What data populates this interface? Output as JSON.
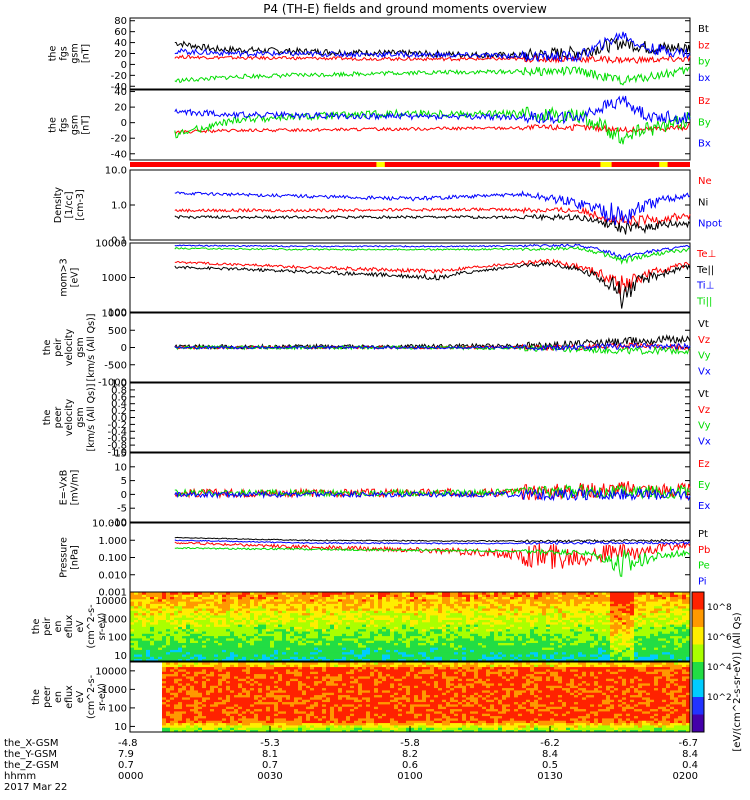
{
  "chart_data": {
    "type": "line",
    "title": "P4 (TH-E) fields and ground moments overview",
    "x": {
      "start": "0000",
      "end": "0200",
      "tick_labels": [
        "0000",
        "0030",
        "0100",
        "0130",
        "0200"
      ],
      "ephemeris": {
        "row_labels": [
          "the_X-GSM",
          "the_Y-GSM",
          "the_Z-GSM",
          "hhmm",
          "2017 Mar 22"
        ],
        "columns": [
          {
            "x": "-4.8",
            "y": "7.9",
            "z": "0.7",
            "t": "0000"
          },
          {
            "x": "-5.3",
            "y": "8.1",
            "z": "0.7",
            "t": "0030"
          },
          {
            "x": "-5.8",
            "y": "8.2",
            "z": "0.6",
            "t": "0100"
          },
          {
            "x": "-6.2",
            "y": "8.4",
            "z": "0.5",
            "t": "0130"
          },
          {
            "x": "-6.7",
            "y": "8.4",
            "z": "0.4",
            "t": "0200"
          }
        ]
      }
    },
    "panels": [
      {
        "id": "fgs_gsm_top",
        "ylabel": "the\nfgs\ngsm\n[nT]",
        "ylim": [
          -45,
          85
        ],
        "scale": "linear",
        "ticks": [
          "80",
          "60",
          "40",
          "20",
          "0",
          "-20",
          "-40"
        ],
        "tick_values": [
          80,
          60,
          40,
          20,
          0,
          -20,
          -40
        ],
        "series": [
          {
            "name": "Bt",
            "color": "#000000",
            "t": [
              0.08,
              0.15,
              0.3,
              0.5,
              0.7,
              0.8,
              0.88,
              0.93,
              1.0
            ],
            "y": [
              40,
              28,
              24,
              20,
              16,
              22,
              40,
              30,
              30
            ],
            "noise": 6
          },
          {
            "name": "bz",
            "color": "#ff0000",
            "t": [
              0.08,
              0.2,
              0.5,
              0.8,
              0.9,
              1.0
            ],
            "y": [
              14,
              12,
              10,
              10,
              8,
              10
            ],
            "noise": 3
          },
          {
            "name": "by",
            "color": "#00dd00",
            "t": [
              0.08,
              0.2,
              0.5,
              0.8,
              0.88,
              1.0
            ],
            "y": [
              -30,
              -22,
              -15,
              -12,
              -30,
              -10
            ],
            "noise": 4
          },
          {
            "name": "bx",
            "color": "#0000ff",
            "t": [
              0.08,
              0.2,
              0.5,
              0.8,
              0.88,
              0.92,
              1.0
            ],
            "y": [
              24,
              20,
              18,
              14,
              55,
              30,
              20
            ],
            "noise": 5
          }
        ]
      },
      {
        "id": "fgs_gsm_bot",
        "ylabel": "the\nfgs\ngsm\n[nT]",
        "ylim": [
          -48,
          42
        ],
        "scale": "linear",
        "ticks": [
          "40",
          "20",
          "0",
          "-20",
          "-40"
        ],
        "tick_values": [
          40,
          20,
          0,
          -20,
          -40
        ],
        "series": [
          {
            "name": "Bz",
            "color": "#ff0000",
            "t": [
              0.08,
              0.2,
              0.5,
              0.8,
              0.9,
              1.0
            ],
            "y": [
              -12,
              -10,
              -8,
              -6,
              -10,
              -5
            ],
            "noise": 2
          },
          {
            "name": "By",
            "color": "#00dd00",
            "t": [
              0.08,
              0.2,
              0.5,
              0.8,
              0.88,
              1.0
            ],
            "y": [
              -15,
              5,
              12,
              10,
              -18,
              5
            ],
            "noise": 5
          },
          {
            "name": "Bx",
            "color": "#0000ff",
            "t": [
              0.08,
              0.2,
              0.5,
              0.8,
              0.88,
              0.92,
              1.0
            ],
            "y": [
              14,
              10,
              8,
              6,
              30,
              10,
              5
            ],
            "noise": 4
          }
        ]
      },
      {
        "id": "density",
        "ylabel": "Density\n[1/cc]\n[cm-3]",
        "ylim": [
          0.1,
          10
        ],
        "scale": "log",
        "ticks": [
          "10.0",
          "1.0",
          "0.1"
        ],
        "tick_values": [
          10,
          1,
          0.1
        ],
        "series": [
          {
            "name": "Ne",
            "color": "#ff0000",
            "t": [
              0.08,
              0.3,
              0.6,
              0.8,
              0.88,
              1.0
            ],
            "y": [
              0.7,
              0.7,
              0.75,
              0.7,
              0.3,
              0.5
            ],
            "noise": 0.1
          },
          {
            "name": "Ni",
            "color": "#000000",
            "t": [
              0.08,
              0.3,
              0.6,
              0.8,
              0.88,
              1.0
            ],
            "y": [
              0.45,
              0.45,
              0.45,
              0.45,
              0.2,
              0.3
            ],
            "noise": 0.06
          },
          {
            "name": "Npot",
            "color": "#0000ff",
            "t": [
              0.08,
              0.3,
              0.5,
              0.7,
              0.88,
              1.0
            ],
            "y": [
              2.2,
              1.8,
              1.5,
              2.0,
              0.4,
              2.0
            ],
            "noise": 0.3
          }
        ]
      },
      {
        "id": "mom_gt3",
        "ylabel": "mom>3\n[eV]",
        "ylim": [
          100,
          10000
        ],
        "scale": "log",
        "ticks": [
          "10000",
          "1000",
          "100"
        ],
        "tick_values": [
          10000,
          1000,
          100
        ],
        "series": [
          {
            "name": "Te⊥",
            "color": "#ff0000",
            "t": [
              0.08,
              0.3,
              0.55,
              0.75,
              0.88,
              1.0
            ],
            "y": [
              2800,
              2000,
              1500,
              3000,
              500,
              2500
            ],
            "noise": 300
          },
          {
            "name": "Te||",
            "color": "#000000",
            "t": [
              0.08,
              0.3,
              0.55,
              0.75,
              0.88,
              1.0
            ],
            "y": [
              2000,
              1500,
              1000,
              2500,
              300,
              2000
            ],
            "noise": 250
          },
          {
            "name": "Ti⊥",
            "color": "#0000ff",
            "t": [
              0.08,
              0.3,
              0.6,
              0.8,
              0.88,
              1.0
            ],
            "y": [
              8500,
              8000,
              8000,
              8500,
              4000,
              8000
            ],
            "noise": 500
          },
          {
            "name": "Ti||",
            "color": "#00dd00",
            "t": [
              0.08,
              0.3,
              0.6,
              0.8,
              0.88,
              1.0
            ],
            "y": [
              7000,
              6500,
              6500,
              7000,
              3000,
              6500
            ],
            "noise": 500
          }
        ]
      },
      {
        "id": "peir_velocity",
        "ylabel": "the\npeir\nvelocity\ngsm\n[km/s (All Qs)]",
        "ylim": [
          -1000,
          1000
        ],
        "scale": "linear",
        "ticks": [
          "1000",
          "500",
          "0",
          "-500",
          "-1000"
        ],
        "tick_values": [
          1000,
          500,
          0,
          -500,
          -1000
        ],
        "series": [
          {
            "name": "Vt",
            "color": "#000000",
            "t": [
              0.08,
              0.5,
              0.75,
              0.9,
              1.0
            ],
            "y": [
              20,
              30,
              60,
              200,
              250
            ],
            "noise": 60
          },
          {
            "name": "Vz",
            "color": "#ff0000",
            "t": [
              0.08,
              0.5,
              0.75,
              0.9,
              1.0
            ],
            "y": [
              0,
              0,
              0,
              50,
              0
            ],
            "noise": 40
          },
          {
            "name": "Vy",
            "color": "#00dd00",
            "t": [
              0.08,
              0.5,
              0.75,
              0.9,
              1.0
            ],
            "y": [
              0,
              0,
              -20,
              -100,
              -80
            ],
            "noise": 50
          },
          {
            "name": "Vx",
            "color": "#0000ff",
            "t": [
              0.08,
              0.5,
              0.75,
              0.9,
              1.0
            ],
            "y": [
              0,
              0,
              0,
              40,
              30
            ],
            "noise": 40
          }
        ]
      },
      {
        "id": "peer_velocity",
        "ylabel": "the\npeer\nvelocity\ngsm\n[km/s (All Qs)]",
        "ylim": [
          -1,
          1
        ],
        "scale": "linear",
        "ticks": [
          "1.0",
          "0.8",
          "0.6",
          "0.4",
          "0.2",
          "0.0",
          "-0.2",
          "-0.4",
          "-0.6",
          "-0.8",
          "-1.0"
        ],
        "tick_values": [
          1,
          0.8,
          0.6,
          0.4,
          0.2,
          0,
          -0.2,
          -0.4,
          -0.6,
          -0.8,
          -1
        ],
        "series": [
          {
            "name": "Vt",
            "color": "#000000",
            "t": [],
            "y": [],
            "noise": 0
          },
          {
            "name": "Vz",
            "color": "#ff0000",
            "t": [],
            "y": [],
            "noise": 0
          },
          {
            "name": "Vy",
            "color": "#00dd00",
            "t": [],
            "y": [],
            "noise": 0
          },
          {
            "name": "Vx",
            "color": "#0000ff",
            "t": [],
            "y": [],
            "noise": 0
          }
        ]
      },
      {
        "id": "efield",
        "ylabel": "E=-VxB\n[mV/m]",
        "ylim": [
          -10,
          15
        ],
        "scale": "linear",
        "ticks": [
          "15",
          "10",
          "5",
          "0",
          "-5",
          "-10"
        ],
        "tick_values": [
          15,
          10,
          5,
          0,
          -5,
          -10
        ],
        "series": [
          {
            "name": "Ez",
            "color": "#ff0000",
            "t": [
              0.08,
              0.5,
              0.75,
              0.88,
              1.0
            ],
            "y": [
              0.5,
              0.5,
              1,
              2,
              1
            ],
            "noise": 1.5
          },
          {
            "name": "Ey",
            "color": "#00dd00",
            "t": [
              0.08,
              0.5,
              0.75,
              0.88,
              1.0
            ],
            "y": [
              0.5,
              0.5,
              1,
              1,
              1
            ],
            "noise": 1.2
          },
          {
            "name": "Ex",
            "color": "#0000ff",
            "t": [
              0.08,
              0.5,
              0.75,
              0.88,
              1.0
            ],
            "y": [
              0,
              0,
              0,
              0,
              0
            ],
            "noise": 1
          }
        ]
      },
      {
        "id": "pressure",
        "ylabel": "Pressure\n[nPa]",
        "ylim": [
          0.001,
          10
        ],
        "scale": "log",
        "ticks": [
          "10.000",
          "1.000",
          "0.100",
          "0.010",
          "0.001"
        ],
        "tick_values": [
          10,
          1,
          0.1,
          0.01,
          0.001
        ],
        "series": [
          {
            "name": "Pt",
            "color": "#000000",
            "t": [
              0.08,
              0.3,
              0.6,
              0.8,
              1.0
            ],
            "y": [
              1.4,
              1.0,
              0.9,
              0.9,
              1.0
            ],
            "noise": 0.1
          },
          {
            "name": "Pb",
            "color": "#ff0000",
            "t": [
              0.08,
              0.3,
              0.55,
              0.75,
              0.9,
              1.0
            ],
            "y": [
              0.7,
              0.4,
              0.25,
              0.1,
              0.2,
              0.5
            ],
            "noise": 0.15
          },
          {
            "name": "Pe",
            "color": "#00dd00",
            "t": [
              0.08,
              0.3,
              0.6,
              0.8,
              0.88,
              1.0
            ],
            "y": [
              0.35,
              0.3,
              0.25,
              0.2,
              0.02,
              0.2
            ],
            "noise": 0.05
          },
          {
            "name": "Pi",
            "color": "#0000ff",
            "t": [
              0.08,
              0.3,
              0.6,
              0.8,
              1.0
            ],
            "y": [
              1.0,
              0.7,
              0.65,
              0.7,
              0.7
            ],
            "noise": 0.08
          }
        ]
      },
      {
        "id": "peir_en_eflux",
        "type": "heatmap",
        "ylabel": "the\npeir\nen\neflux\neV\n(cm^2-s-\nsr-eV)",
        "ylim": [
          5,
          30000
        ],
        "scale": "log",
        "ticks": [
          "10000",
          "1000",
          "100",
          "10"
        ],
        "tick_values": [
          10000,
          1000,
          100,
          10
        ]
      },
      {
        "id": "peer_en_eflux",
        "type": "heatmap",
        "ylabel": "the\npeer\nen\neflux\neV\n(cm^2-s-\nsr-eV)",
        "ylim": [
          5,
          30000
        ],
        "scale": "log",
        "ticks": [
          "10000",
          "1000",
          "100",
          "10"
        ],
        "tick_values": [
          10000,
          1000,
          100,
          10
        ]
      }
    ],
    "colorbar": {
      "label": "[eV/(cm^2-s-sr-eV)] (All Qs)",
      "ticks": [
        "10^8",
        "10^6",
        "10^4",
        "10^2"
      ]
    }
  }
}
